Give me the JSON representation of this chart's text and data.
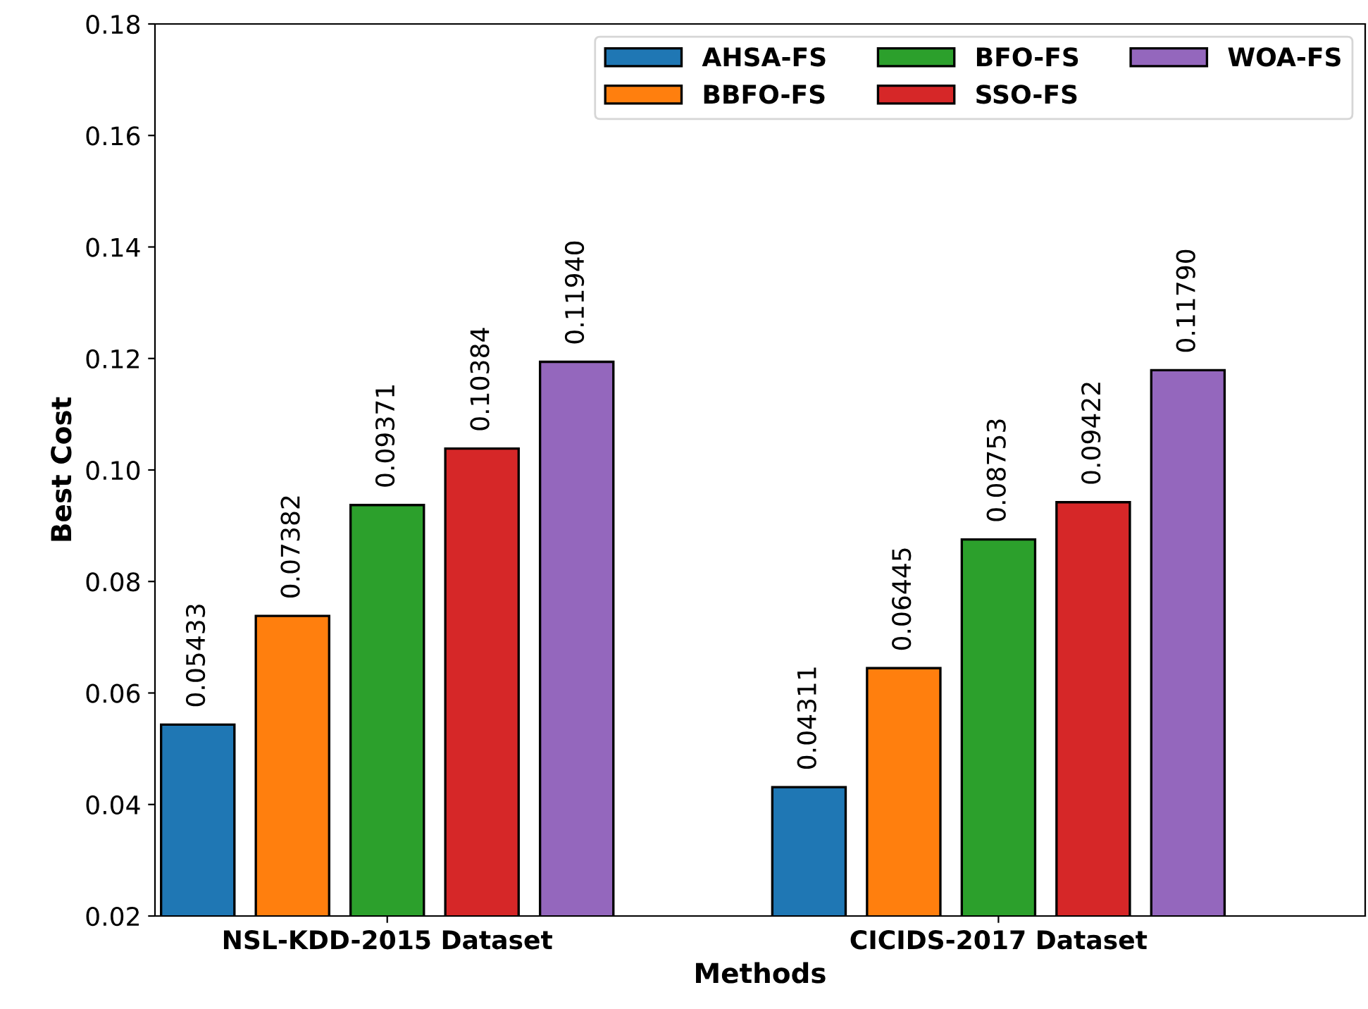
{
  "chart_data": {
    "type": "bar",
    "xlabel": "Methods",
    "ylabel": "Best Cost",
    "categories": [
      "NSL-KDD-2015 Dataset",
      "CICIDS-2017 Dataset"
    ],
    "series": [
      {
        "name": "AHSA-FS",
        "color": "#1f77b4",
        "values": [
          0.05433,
          0.04311
        ],
        "value_labels": [
          "0.05433",
          "0.04311"
        ]
      },
      {
        "name": "BBFO-FS",
        "color": "#ff7f0e",
        "values": [
          0.07382,
          0.06445
        ],
        "value_labels": [
          "0.07382",
          "0.06445"
        ]
      },
      {
        "name": "BFO-FS",
        "color": "#2ca02c",
        "values": [
          0.09371,
          0.08753
        ],
        "value_labels": [
          "0.09371",
          "0.08753"
        ]
      },
      {
        "name": "SSO-FS",
        "color": "#d62728",
        "values": [
          0.10384,
          0.09422
        ],
        "value_labels": [
          "0.10384",
          "0.09422"
        ]
      },
      {
        "name": "WOA-FS",
        "color": "#9467bd",
        "values": [
          0.1194,
          0.1179
        ],
        "value_labels": [
          "0.11940",
          "0.11790"
        ]
      }
    ],
    "ylim": [
      0.02,
      0.18
    ],
    "yticks": [
      0.02,
      0.04,
      0.06,
      0.08,
      {
        "value": 0.1,
        "label": "0.10"
      },
      0.12,
      0.14,
      0.16,
      0.18
    ],
    "legend": "top right",
    "grid": false
  }
}
